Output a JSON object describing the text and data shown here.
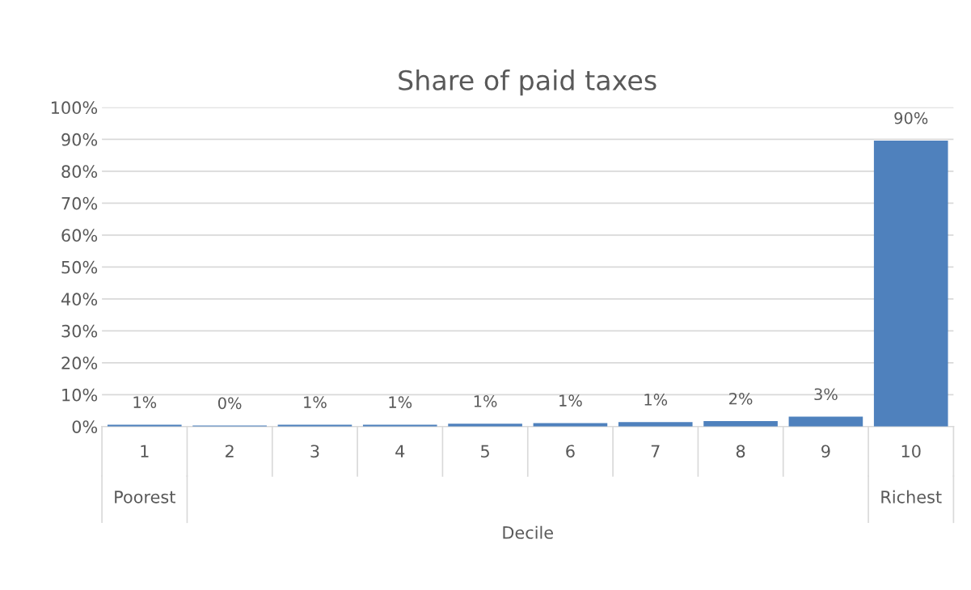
{
  "chart_data": {
    "type": "bar",
    "title": "Share of paid taxes",
    "xlabel": "Decile",
    "categories": [
      "1",
      "2",
      "3",
      "4",
      "5",
      "6",
      "7",
      "8",
      "9",
      "10"
    ],
    "values": [
      0.6,
      0.3,
      0.6,
      0.6,
      0.9,
      1.1,
      1.4,
      1.7,
      3.1,
      89.6
    ],
    "value_labels": [
      "1%",
      "0%",
      "1%",
      "1%",
      "1%",
      "1%",
      "1%",
      "2%",
      "3%",
      "90%"
    ],
    "color": "#4f81bd",
    "ylim": [
      0,
      100
    ],
    "yticks": [
      {
        "value": 0,
        "label": "0%"
      },
      {
        "value": 10,
        "label": "10%"
      },
      {
        "value": 20,
        "label": "20%"
      },
      {
        "value": 30,
        "label": "30%"
      },
      {
        "value": 40,
        "label": "40%"
      },
      {
        "value": 50,
        "label": "50%"
      },
      {
        "value": 60,
        "label": "60%"
      },
      {
        "value": 70,
        "label": "70%"
      },
      {
        "value": 80,
        "label": "80%"
      },
      {
        "value": 90,
        "label": "90%"
      },
      {
        "value": 100,
        "label": "100%"
      }
    ],
    "grid": "y",
    "legend": false,
    "annotations": [
      "Poorest",
      "Richest"
    ]
  }
}
